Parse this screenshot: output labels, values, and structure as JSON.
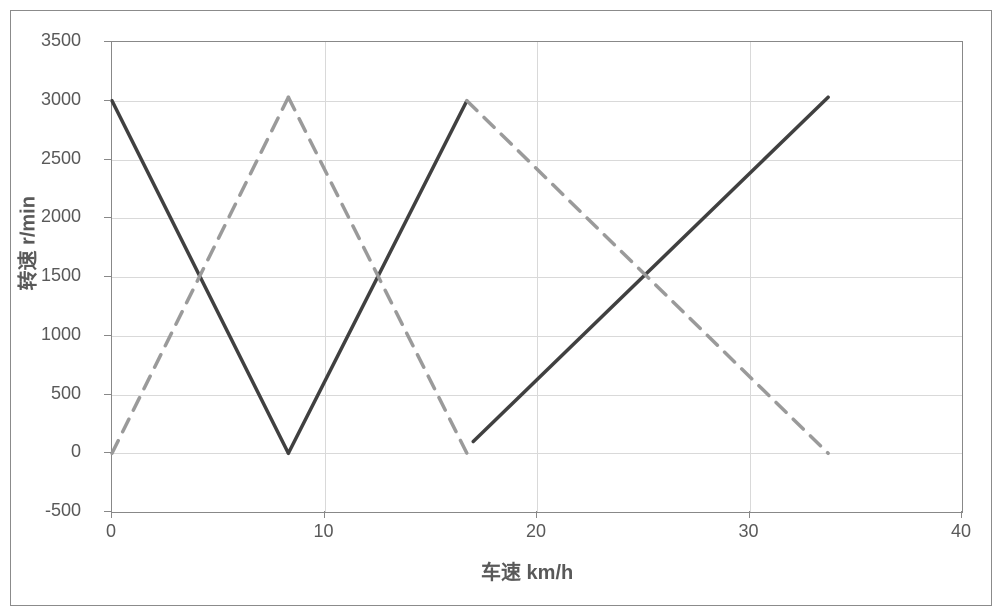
{
  "chart": {
    "type": "line",
    "xaxis": {
      "label": "车速 km/h",
      "min": 0,
      "max": 40,
      "ticks": [
        0,
        10,
        20,
        30,
        40
      ],
      "title_fontsize": 20,
      "tick_fontsize": 18
    },
    "yaxis": {
      "label": "转速 r/min",
      "min": -500,
      "max": 3500,
      "ticks": [
        -500,
        0,
        500,
        1000,
        1500,
        2000,
        2500,
        3000,
        3500
      ],
      "title_fontsize": 20,
      "tick_fontsize": 18
    },
    "grid_color": "#d9d9d9",
    "border_color": "#888888",
    "background_color": "#ffffff",
    "frame_border_color": "#8b8b8b",
    "series": [
      {
        "name": "solid-1",
        "style": "solid",
        "color": "#404040",
        "width": 3.5,
        "points": [
          [
            0,
            3000
          ],
          [
            8.3,
            0
          ]
        ]
      },
      {
        "name": "solid-2",
        "style": "solid",
        "color": "#404040",
        "width": 3.5,
        "points": [
          [
            8.3,
            0
          ],
          [
            16.7,
            3000
          ]
        ]
      },
      {
        "name": "solid-3",
        "style": "solid",
        "color": "#404040",
        "width": 3.5,
        "points": [
          [
            17.0,
            100
          ],
          [
            33.7,
            3030
          ]
        ]
      },
      {
        "name": "dashed-1",
        "style": "dashed",
        "color": "#9a9a9a",
        "width": 3.5,
        "dash": "14,10",
        "points": [
          [
            0,
            0
          ],
          [
            8.3,
            3030
          ]
        ]
      },
      {
        "name": "dashed-2",
        "style": "dashed",
        "color": "#9a9a9a",
        "width": 3.5,
        "dash": "14,10",
        "points": [
          [
            8.3,
            3030
          ],
          [
            16.7,
            0
          ]
        ]
      },
      {
        "name": "dashed-3",
        "style": "dashed",
        "color": "#9a9a9a",
        "width": 3.5,
        "dash": "14,10",
        "points": [
          [
            16.7,
            3000
          ],
          [
            33.7,
            0
          ]
        ]
      }
    ]
  }
}
